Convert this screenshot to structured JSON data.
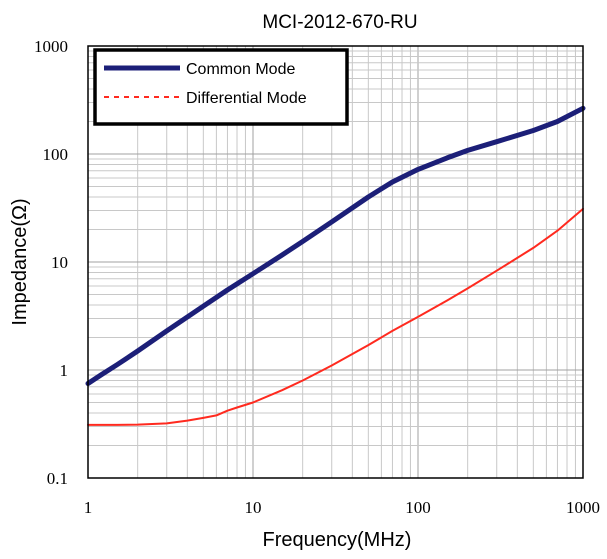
{
  "chart_data": {
    "type": "line",
    "title": "MCI-2012-670-RU",
    "xlabel": "Frequency(MHz)",
    "ylabel": "Impedance(Ω)",
    "x_scale": "log",
    "y_scale": "log",
    "xlim": [
      1,
      1000
    ],
    "ylim": [
      0.1,
      1000
    ],
    "grid": true,
    "legend_position": "top-left",
    "x_tick_labels": [
      "1",
      "10",
      "100",
      "1000"
    ],
    "y_tick_labels": [
      "0.1",
      "1",
      "10",
      "100",
      "1000"
    ],
    "series": [
      {
        "name": "Common Mode",
        "color": "#1c1f78",
        "style": "solid",
        "x": [
          1,
          1.2,
          1.5,
          2,
          3,
          5,
          7,
          10,
          15,
          20,
          30,
          50,
          70,
          100,
          150,
          200,
          300,
          500,
          700,
          1000
        ],
        "y": [
          0.75,
          0.9,
          1.12,
          1.5,
          2.3,
          3.9,
          5.5,
          7.8,
          11.6,
          15.5,
          23.5,
          40,
          55,
          72,
          92,
          108,
          130,
          165,
          200,
          265
        ]
      },
      {
        "name": "Differential Mode",
        "color": "#ff2a1f",
        "style": "dashed",
        "x": [
          1,
          1.5,
          2,
          3,
          4,
          5,
          6,
          7,
          8,
          10,
          15,
          20,
          30,
          50,
          70,
          100,
          150,
          200,
          300,
          500,
          700,
          1000
        ],
        "y": [
          0.31,
          0.31,
          0.312,
          0.32,
          0.34,
          0.36,
          0.38,
          0.42,
          0.45,
          0.5,
          0.65,
          0.8,
          1.1,
          1.7,
          2.3,
          3.1,
          4.4,
          5.7,
          8.3,
          13.5,
          19.5,
          31
        ]
      }
    ]
  }
}
